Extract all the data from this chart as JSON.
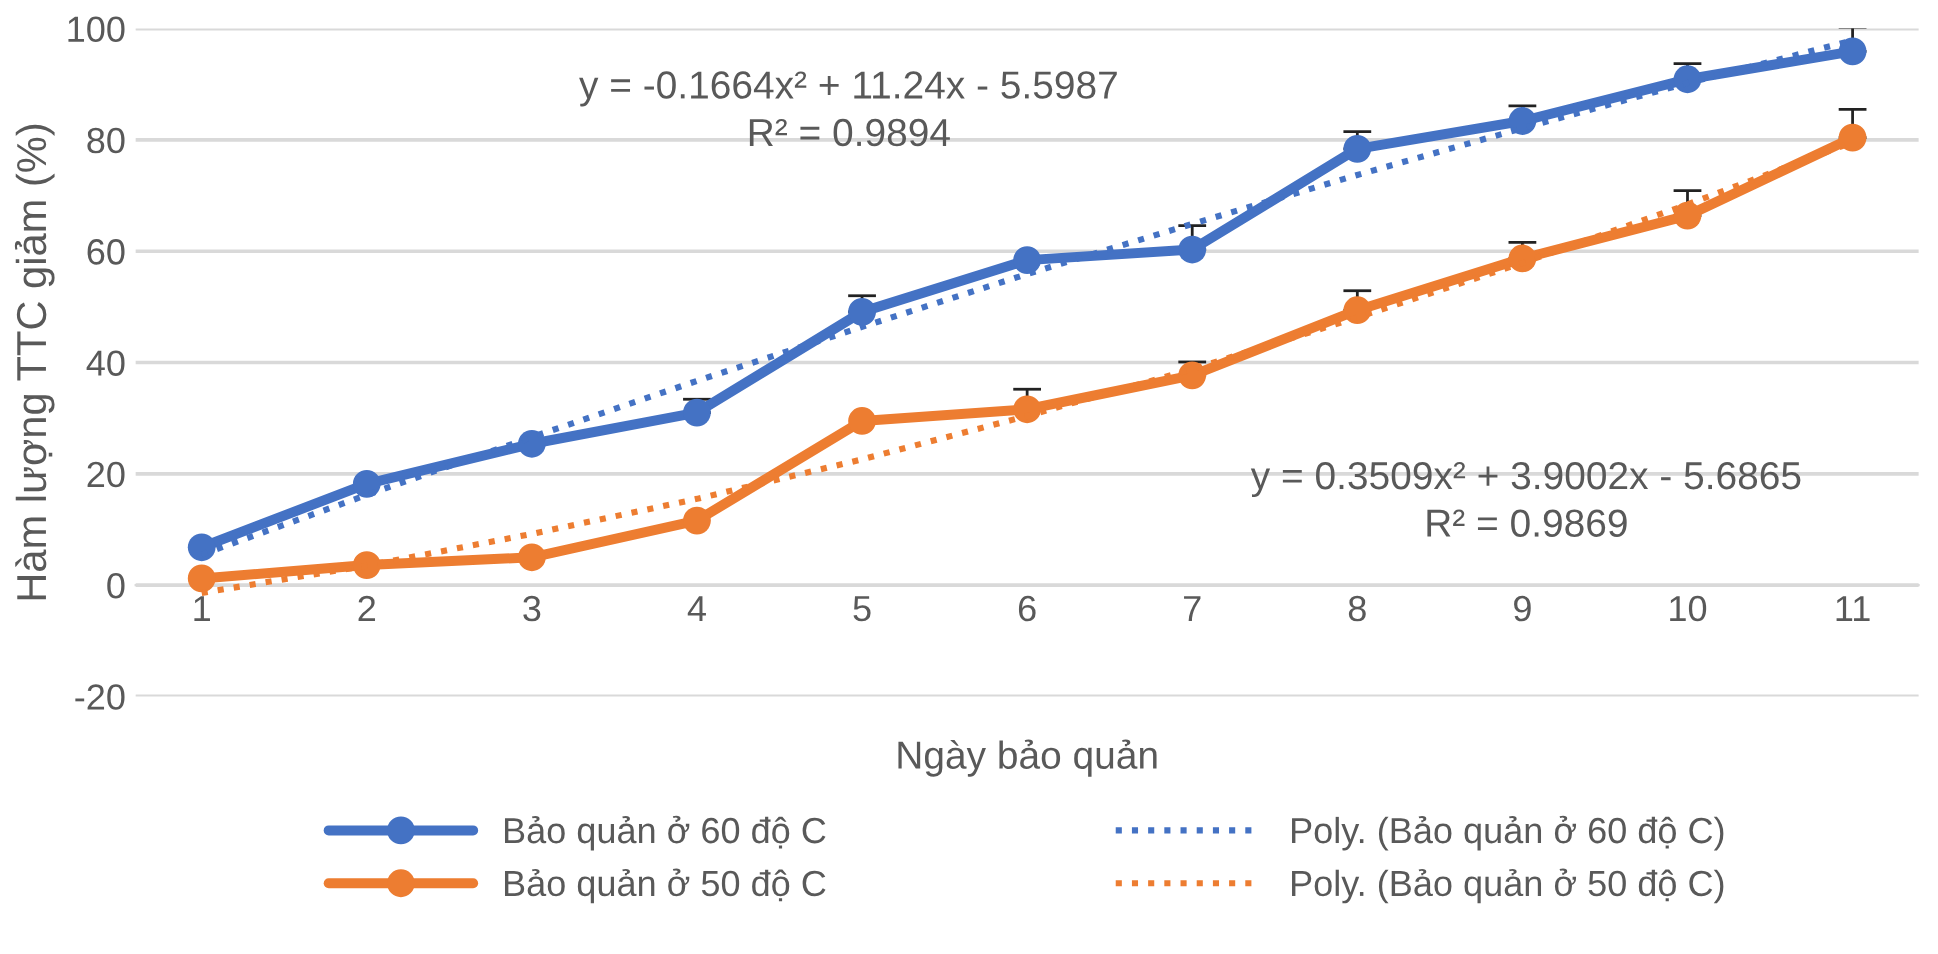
{
  "chart_data": {
    "type": "line",
    "xlabel": "Ngày bảo quản",
    "ylabel": "Hàm lượng TTC giảm (%)",
    "x": [
      1,
      2,
      3,
      4,
      5,
      6,
      7,
      8,
      9,
      10,
      11
    ],
    "xlim": [
      0.6,
      11.4
    ],
    "xticks": [
      1,
      2,
      3,
      4,
      5,
      6,
      7,
      8,
      9,
      10,
      11
    ],
    "ylim": [
      -20,
      100
    ],
    "yticks": [
      -20,
      0,
      20,
      40,
      60,
      80,
      100
    ],
    "grid": "y",
    "legend": "bottom",
    "series": [
      {
        "name": "Bảo quản ở 60 độ C",
        "color": "#4472c4",
        "marker": "circle",
        "line_style": "solid",
        "values": [
          6.8,
          18.2,
          25.4,
          31.0,
          49.1,
          58.4,
          60.3,
          78.4,
          83.4,
          90.9,
          95.9
        ],
        "errors": [
          null,
          null,
          null,
          [
            31.0,
            33.4
          ],
          [
            49.1,
            52.0
          ],
          null,
          [
            60.3,
            64.6
          ],
          [
            78.4,
            81.5
          ],
          [
            83.4,
            86.1
          ],
          [
            90.9,
            93.7
          ],
          [
            95.9,
            100.2
          ]
        ]
      },
      {
        "name": "Bảo quản ở 50 độ C",
        "color": "#ed7d31",
        "marker": "circle",
        "line_style": "solid",
        "values": [
          1.2,
          3.6,
          5.0,
          11.6,
          29.5,
          31.6,
          37.7,
          49.4,
          58.7,
          66.4,
          80.4
        ],
        "errors": [
          null,
          null,
          null,
          null,
          null,
          [
            31.6,
            35.2
          ],
          [
            37.7,
            40.1
          ],
          [
            49.4,
            52.9
          ],
          [
            58.7,
            61.6
          ],
          [
            66.4,
            70.9
          ],
          [
            80.4,
            85.5
          ]
        ]
      },
      {
        "name": "Poly. (Bảo quản ở 60 độ C)",
        "color": "#4472c4",
        "type": "line",
        "marker": "none",
        "line_style": "dotted",
        "x": [
          1,
          2,
          3,
          4,
          5,
          6,
          7,
          8,
          9,
          10,
          11
        ],
        "values": [
          5.5,
          16.2,
          26.6,
          36.7,
          46.4,
          55.9,
          64.9,
          73.7,
          82.1,
          90.2,
          97.9
        ]
      },
      {
        "name": "Poly. (Bảo quản ở 50 độ C)",
        "color": "#ed7d31",
        "type": "line",
        "marker": "none",
        "line_style": "dotted",
        "x": [
          1,
          2,
          3,
          4,
          5,
          6,
          7,
          8,
          9,
          10,
          11
        ],
        "values": [
          -1.4,
          3.5,
          9.2,
          15.5,
          22.6,
          30.4,
          38.8,
          48.1,
          57.9,
          68.4,
          79.6
        ]
      }
    ],
    "annotations": [
      "y = -0.1664x² + 11.24x - 5.5987\nR² = 0.9894",
      "y = 0.3509x² + 3.9002x - 5.6865\nR² = 0.9869"
    ]
  }
}
